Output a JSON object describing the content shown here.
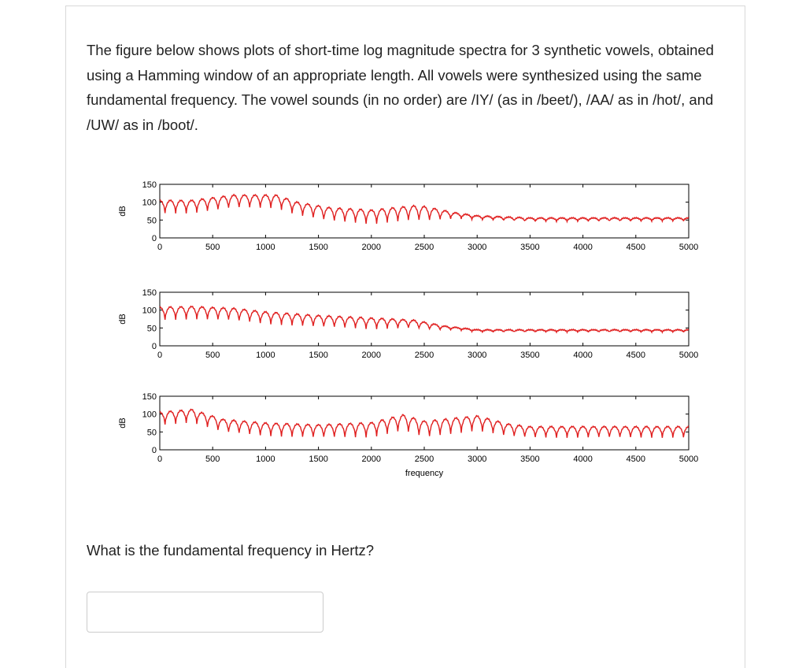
{
  "question": {
    "intro": "The figure below shows plots of short-time log magnitude spectra for 3 synthetic vowels, obtained using a Hamming window of an appropriate length. All vowels were synthesized using the same fundamental frequency. The vowel sounds (in no order) are /IY/ (as in /beet/), /AA/ as in /hot/, and /UW/ as in /boot/.",
    "prompt": "What is the fundamental frequency in Hertz?",
    "answer_value": ""
  },
  "chart_data": [
    {
      "type": "line",
      "ylabel": "dB",
      "xlabel": "",
      "xlim": [
        0,
        5000
      ],
      "ylim": [
        0,
        150
      ],
      "xticks": [
        "0",
        "500",
        "1000",
        "1500",
        "2000",
        "2500",
        "3000",
        "3500",
        "4000",
        "4500",
        "5000"
      ],
      "yticks": [
        "0",
        "50",
        "100",
        "150"
      ],
      "line_color": "#e02020",
      "harmonic_spacing_hz": 100,
      "envelope": [
        [
          0,
          105
        ],
        [
          300,
          105
        ],
        [
          700,
          120
        ],
        [
          1100,
          120
        ],
        [
          1300,
          100
        ],
        [
          1600,
          85
        ],
        [
          2000,
          78
        ],
        [
          2400,
          90
        ],
        [
          2500,
          88
        ],
        [
          2800,
          70
        ],
        [
          3000,
          62
        ],
        [
          3500,
          56
        ],
        [
          5000,
          56
        ]
      ],
      "ripple": [
        [
          0,
          35
        ],
        [
          1200,
          35
        ],
        [
          2500,
          40
        ],
        [
          2800,
          15
        ],
        [
          3000,
          10
        ],
        [
          5000,
          8
        ]
      ]
    },
    {
      "type": "line",
      "ylabel": "dB",
      "xlabel": "",
      "xlim": [
        0,
        5000
      ],
      "ylim": [
        0,
        150
      ],
      "xticks": [
        "0",
        "500",
        "1000",
        "1500",
        "2000",
        "2500",
        "3000",
        "3500",
        "4000",
        "4500",
        "5000"
      ],
      "yticks": [
        "0",
        "50",
        "100",
        "150"
      ],
      "line_color": "#e02020",
      "harmonic_spacing_hz": 100,
      "envelope": [
        [
          0,
          108
        ],
        [
          300,
          110
        ],
        [
          700,
          105
        ],
        [
          1000,
          95
        ],
        [
          1500,
          85
        ],
        [
          2000,
          78
        ],
        [
          2400,
          72
        ],
        [
          2700,
          55
        ],
        [
          3000,
          45
        ],
        [
          5000,
          45
        ]
      ],
      "ripple": [
        [
          0,
          35
        ],
        [
          2000,
          30
        ],
        [
          2500,
          20
        ],
        [
          2800,
          6
        ],
        [
          5000,
          6
        ]
      ]
    },
    {
      "type": "line",
      "ylabel": "dB",
      "xlabel": "frequency",
      "xlim": [
        0,
        5000
      ],
      "ylim": [
        0,
        150
      ],
      "xticks": [
        "0",
        "500",
        "1000",
        "1500",
        "2000",
        "2500",
        "3000",
        "3500",
        "4000",
        "4500",
        "5000"
      ],
      "yticks": [
        "0",
        "50",
        "100",
        "150"
      ],
      "line_color": "#e02020",
      "harmonic_spacing_hz": 100,
      "envelope": [
        [
          0,
          105
        ],
        [
          300,
          113
        ],
        [
          600,
          85
        ],
        [
          1000,
          75
        ],
        [
          1500,
          70
        ],
        [
          2000,
          76
        ],
        [
          2300,
          98
        ],
        [
          2500,
          80
        ],
        [
          3000,
          95
        ],
        [
          3300,
          72
        ],
        [
          3500,
          65
        ],
        [
          5000,
          65
        ]
      ],
      "ripple": [
        [
          0,
          35
        ],
        [
          1500,
          35
        ],
        [
          2500,
          45
        ],
        [
          3000,
          40
        ],
        [
          3500,
          30
        ],
        [
          5000,
          30
        ]
      ]
    }
  ]
}
